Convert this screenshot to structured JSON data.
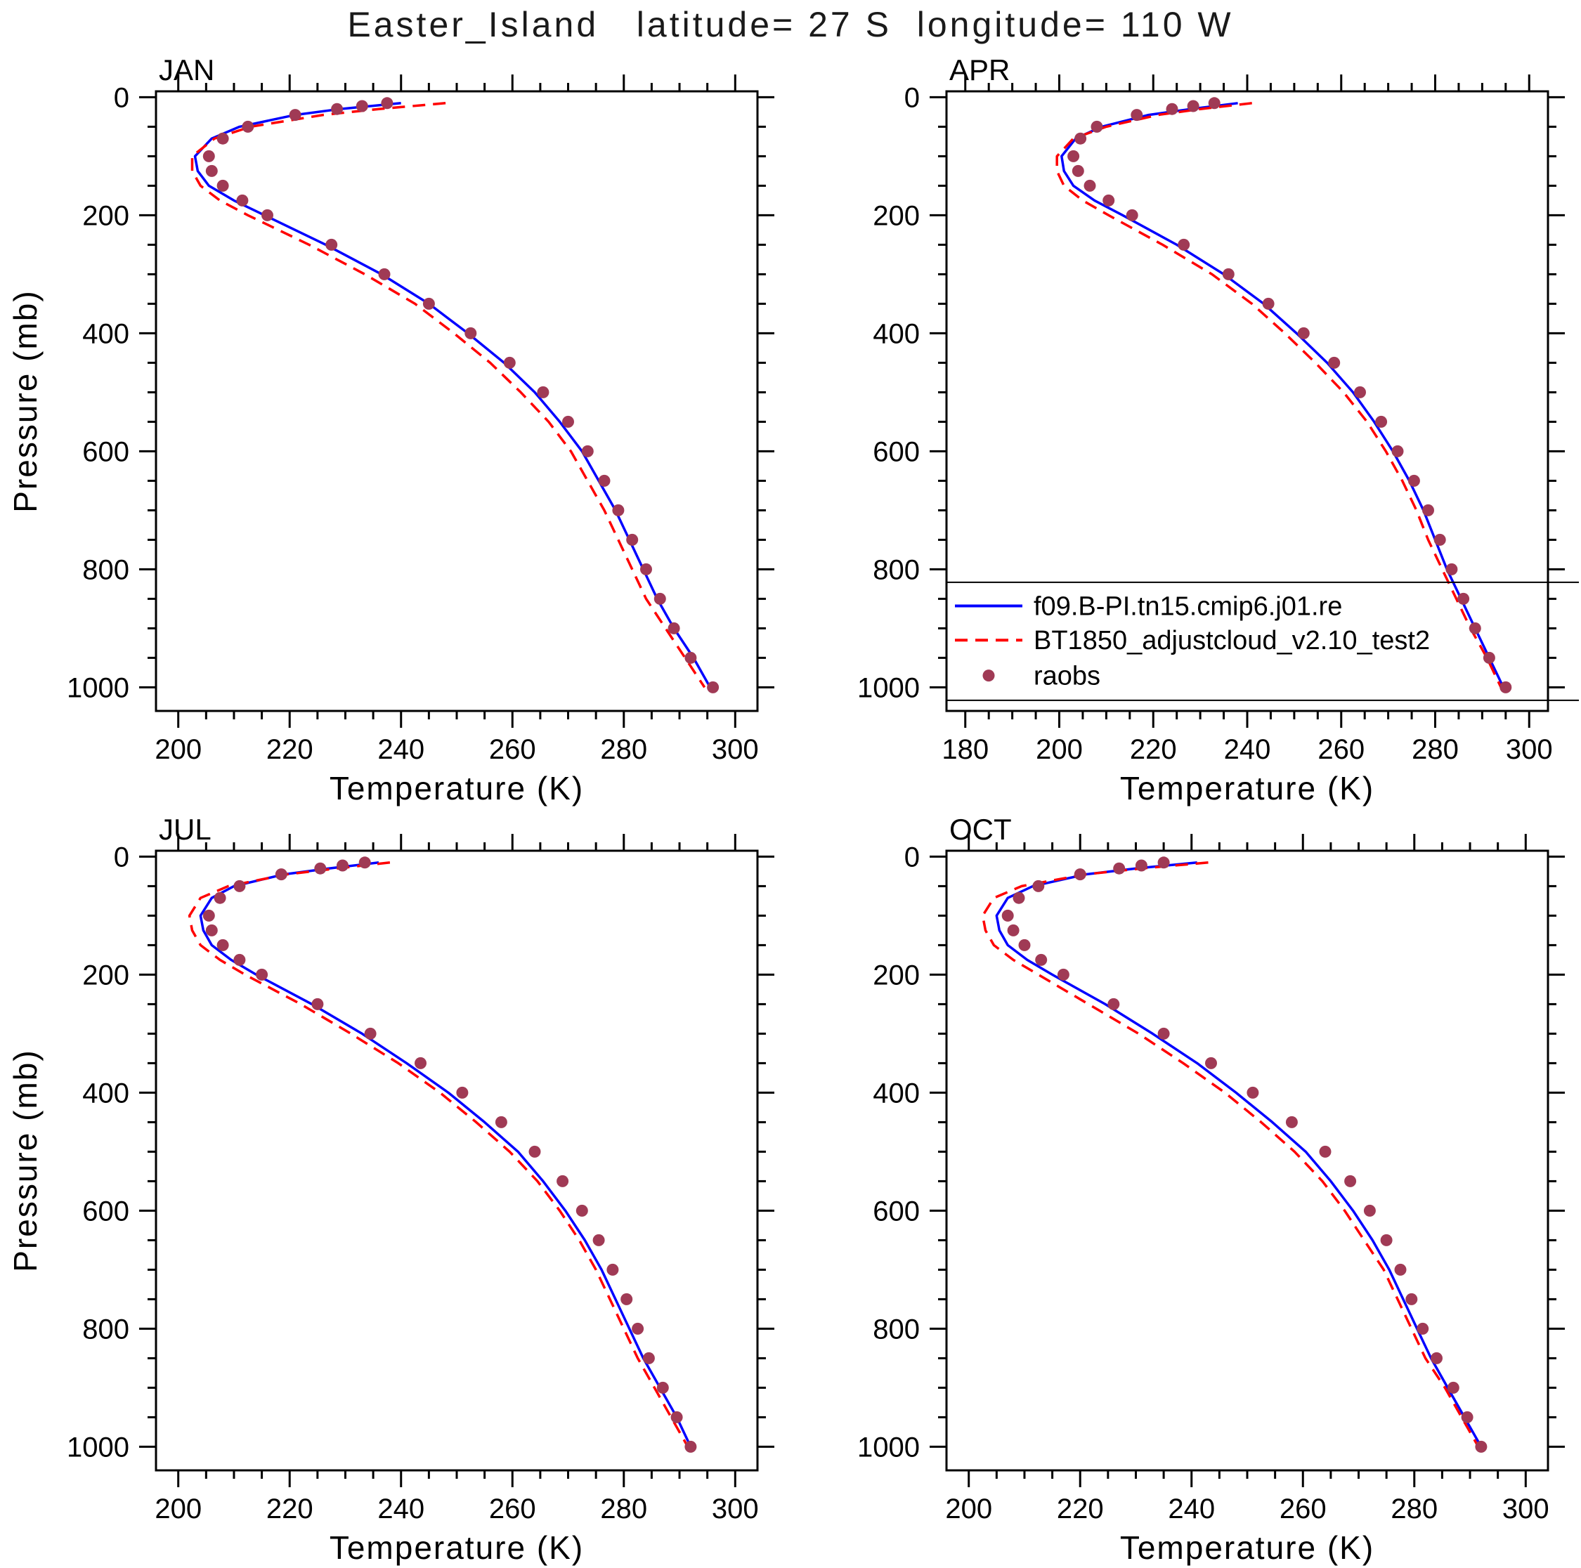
{
  "title": "Easter_Island   latitude= 27 S  longitude= 110 W",
  "colors": {
    "model1": "#0000ff",
    "model2": "#ff0000",
    "raobs": "#a03a55",
    "axis": "#000000"
  },
  "legend": {
    "panel": "APR",
    "entries": [
      {
        "type": "line-solid",
        "color": "#0000ff",
        "label": "f09.B-PI.tn15.cmip6.j01.re"
      },
      {
        "type": "line-dashed",
        "color": "#ff0000",
        "label": "BT1850_adjustcloud_v2.10_test2"
      },
      {
        "type": "dot",
        "color": "#a03a55",
        "label": "raobs"
      }
    ]
  },
  "chart_data": {
    "type": "line",
    "suptitle": "Easter_Island   latitude= 27 S  longitude= 110 W",
    "y_axis_orientation": "inverted",
    "panels": [
      {
        "month": "JAN",
        "xlabel": "Temperature (K)",
        "ylabel": "Pressure (mb)",
        "xlim": [
          200,
          300
        ],
        "xtick_step": 20,
        "x_minor_step": 5,
        "ylim": [
          0,
          1000
        ],
        "ytick_step": 200,
        "y_minor_step": 50,
        "series": [
          {
            "name": "f09.B-PI.tn15.cmip6.j01.re",
            "style": "solid",
            "color": "#0000ff",
            "pressure": [
              10,
              20,
              30,
              50,
              70,
              100,
              125,
              150,
              175,
              200,
              250,
              300,
              350,
              400,
              450,
              500,
              550,
              600,
              650,
              700,
              750,
              800,
              850,
              900,
              950,
              1000
            ],
            "temperature": [
              240,
              229,
              221,
              211,
              206,
              203,
              203.5,
              205.5,
              210,
              215.5,
              226.5,
              236.5,
              245,
              252,
              258.5,
              264,
              268.5,
              272.5,
              275.5,
              278.5,
              281,
              283.5,
              286,
              289,
              292.5,
              295.5
            ]
          },
          {
            "name": "BT1850_adjustcloud_v2.10_test2",
            "style": "dashed",
            "color": "#ff0000",
            "pressure": [
              10,
              20,
              30,
              50,
              70,
              100,
              125,
              150,
              175,
              200,
              250,
              300,
              350,
              400,
              450,
              500,
              550,
              600,
              650,
              700,
              750,
              800,
              850,
              900,
              950,
              1000
            ],
            "temperature": [
              248,
              236,
              226,
              213,
              206.5,
              202.5,
              202.5,
              204,
              207.5,
              212.5,
              223.5,
              233.5,
              242.5,
              249.5,
              256,
              261.5,
              266.5,
              270.5,
              273.5,
              276.5,
              279,
              281.5,
              284,
              287.5,
              291,
              294.5
            ]
          },
          {
            "name": "raobs",
            "style": "dots",
            "color": "#a03a55",
            "pressure": [
              1000,
              950,
              900,
              850,
              800,
              750,
              700,
              650,
              600,
              550,
              500,
              450,
              400,
              350,
              300,
              250,
              200,
              175,
              150,
              125,
              100,
              70,
              50,
              30,
              20,
              15,
              10
            ],
            "temperature": [
              296,
              292,
              289,
              286.5,
              284,
              281.5,
              279,
              276.5,
              273.5,
              270,
              265.5,
              259.5,
              252.5,
              245,
              237,
              227.5,
              216,
              211.5,
              208,
              206,
              205.5,
              208,
              212.5,
              221,
              228.5,
              233,
              237.5
            ]
          }
        ]
      },
      {
        "month": "APR",
        "xlabel": "Temperature (K)",
        "ylabel": "Pressure (mb)",
        "xlim": [
          180,
          300
        ],
        "xtick_step": 20,
        "x_minor_step": 5,
        "ylim": [
          0,
          1000
        ],
        "ytick_step": 200,
        "y_minor_step": 50,
        "series": [
          {
            "name": "f09.B-PI.tn15.cmip6.j01.re",
            "style": "solid",
            "color": "#0000ff",
            "pressure": [
              10,
              20,
              30,
              50,
              70,
              100,
              125,
              150,
              175,
              200,
              250,
              300,
              350,
              400,
              450,
              500,
              550,
              600,
              650,
              700,
              750,
              800,
              850,
              900,
              950,
              1000
            ],
            "temperature": [
              238,
              228,
              219,
              209,
              203.5,
              200.5,
              201,
              203,
              207.5,
              213.5,
              225,
              235,
              243.5,
              250.5,
              257,
              262.5,
              267,
              271,
              274.5,
              277.5,
              280,
              282.5,
              285.5,
              288.5,
              291.5,
              294.5
            ]
          },
          {
            "name": "BT1850_adjustcloud_v2.10_test2",
            "style": "dashed",
            "color": "#ff0000",
            "pressure": [
              10,
              20,
              30,
              50,
              70,
              100,
              125,
              150,
              175,
              200,
              250,
              300,
              350,
              400,
              450,
              500,
              550,
              600,
              650,
              700,
              750,
              800,
              850,
              900,
              950,
              1000
            ],
            "temperature": [
              241,
              230,
              221,
              210,
              203,
              199.5,
              199.5,
              201,
              205,
              210.5,
              222,
              232.5,
              241,
              248,
              254.5,
              260.5,
              265.5,
              269.5,
              273,
              276,
              278.5,
              281.5,
              284.5,
              287.5,
              291,
              294
            ]
          },
          {
            "name": "raobs",
            "style": "dots",
            "color": "#a03a55",
            "pressure": [
              1000,
              950,
              900,
              850,
              800,
              750,
              700,
              650,
              600,
              550,
              500,
              450,
              400,
              350,
              300,
              250,
              200,
              175,
              150,
              125,
              100,
              70,
              50,
              30,
              20,
              15,
              10
            ],
            "temperature": [
              295,
              291.5,
              288.5,
              286,
              283.5,
              281,
              278.5,
              275.5,
              272,
              268.5,
              264,
              258.5,
              252,
              244.5,
              236,
              226.5,
              215.5,
              210.5,
              206.5,
              204,
              203,
              204.5,
              208,
              216.5,
              224,
              228.5,
              233
            ]
          }
        ]
      },
      {
        "month": "JUL",
        "xlabel": "Temperature (K)",
        "ylabel": "Pressure (mb)",
        "xlim": [
          200,
          300
        ],
        "xtick_step": 20,
        "x_minor_step": 5,
        "ylim": [
          0,
          1000
        ],
        "ytick_step": 200,
        "y_minor_step": 50,
        "series": [
          {
            "name": "f09.B-PI.tn15.cmip6.j01.re",
            "style": "solid",
            "color": "#0000ff",
            "pressure": [
              10,
              20,
              30,
              50,
              70,
              100,
              125,
              150,
              175,
              200,
              250,
              300,
              350,
              400,
              450,
              500,
              550,
              600,
              650,
              700,
              750,
              800,
              850,
              900,
              950,
              1000
            ],
            "temperature": [
              236,
              227,
              219,
              210,
              206,
              204,
              204.5,
              206,
              209.5,
              214,
              224,
              233,
              241,
              248.5,
              255,
              261,
              265.5,
              269.5,
              273,
              276,
              278.5,
              281,
              283.5,
              286.5,
              289.5,
              292
            ]
          },
          {
            "name": "BT1850_adjustcloud_v2.10_test2",
            "style": "dashed",
            "color": "#ff0000",
            "pressure": [
              10,
              20,
              30,
              50,
              70,
              100,
              125,
              150,
              175,
              200,
              250,
              300,
              350,
              400,
              450,
              500,
              550,
              600,
              650,
              700,
              750,
              800,
              850,
              900,
              950,
              1000
            ],
            "temperature": [
              238,
              228.5,
              219.5,
              209,
              204,
              202,
              202.5,
              204,
              207.5,
              212,
              222,
              231,
              239.5,
              247,
              253.5,
              259.5,
              264.5,
              268.5,
              272,
              275,
              277.5,
              280,
              282.5,
              285.5,
              288.5,
              291.5
            ]
          },
          {
            "name": "raobs",
            "style": "dots",
            "color": "#a03a55",
            "pressure": [
              1000,
              950,
              900,
              850,
              800,
              750,
              700,
              650,
              600,
              550,
              500,
              450,
              400,
              350,
              300,
              250,
              200,
              175,
              150,
              125,
              100,
              70,
              50,
              30,
              20,
              15,
              10
            ],
            "temperature": [
              292,
              289.5,
              287,
              284.5,
              282.5,
              280.5,
              278,
              275.5,
              272.5,
              269,
              264,
              258,
              251,
              243.5,
              234.5,
              225,
              215,
              211,
              208,
              206,
              205.5,
              207.5,
              211,
              218.5,
              225.5,
              229.5,
              233.5
            ]
          }
        ]
      },
      {
        "month": "OCT",
        "xlabel": "Temperature (K)",
        "ylabel": "Pressure (mb)",
        "xlim": [
          200,
          300
        ],
        "xtick_step": 20,
        "x_minor_step": 5,
        "ylim": [
          0,
          1000
        ],
        "ytick_step": 200,
        "y_minor_step": 50,
        "series": [
          {
            "name": "f09.B-PI.tn15.cmip6.j01.re",
            "style": "solid",
            "color": "#0000ff",
            "pressure": [
              10,
              20,
              30,
              50,
              70,
              100,
              125,
              150,
              175,
              200,
              250,
              300,
              350,
              400,
              450,
              500,
              550,
              600,
              650,
              700,
              750,
              800,
              850,
              900,
              950,
              1000
            ],
            "temperature": [
              241,
              230,
              221,
              211.5,
              207,
              205,
              205.5,
              207,
              210.5,
              215,
              224.5,
              233,
              241,
              248,
              254.5,
              260.5,
              265,
              269,
              272.5,
              275.5,
              278,
              280.5,
              283,
              286,
              289,
              292
            ]
          },
          {
            "name": "BT1850_adjustcloud_v2.10_test2",
            "style": "dashed",
            "color": "#ff0000",
            "pressure": [
              10,
              20,
              30,
              50,
              70,
              100,
              125,
              150,
              175,
              200,
              250,
              300,
              350,
              400,
              450,
              500,
              550,
              600,
              650,
              700,
              750,
              800,
              850,
              900,
              950,
              1000
            ],
            "temperature": [
              243,
              231,
              221,
              209.5,
              204.5,
              202.5,
              203,
              204.5,
              208,
              212.5,
              221.5,
              230.5,
              238.5,
              246,
              252.5,
              258.5,
              263.5,
              267.5,
              271,
              274.5,
              277,
              279.5,
              282,
              285.5,
              288.5,
              291.5
            ]
          },
          {
            "name": "raobs",
            "style": "dots",
            "color": "#a03a55",
            "pressure": [
              1000,
              950,
              900,
              850,
              800,
              750,
              700,
              650,
              600,
              550,
              500,
              450,
              400,
              350,
              300,
              250,
              200,
              175,
              150,
              125,
              100,
              70,
              50,
              30,
              20,
              15,
              10
            ],
            "temperature": [
              292,
              289.5,
              287,
              284,
              281.5,
              279.5,
              277.5,
              275,
              272,
              268.5,
              264,
              258,
              251,
              243.5,
              235,
              226,
              217,
              213,
              210,
              208,
              207,
              209,
              212.5,
              220,
              227,
              231,
              235
            ]
          }
        ]
      }
    ]
  }
}
